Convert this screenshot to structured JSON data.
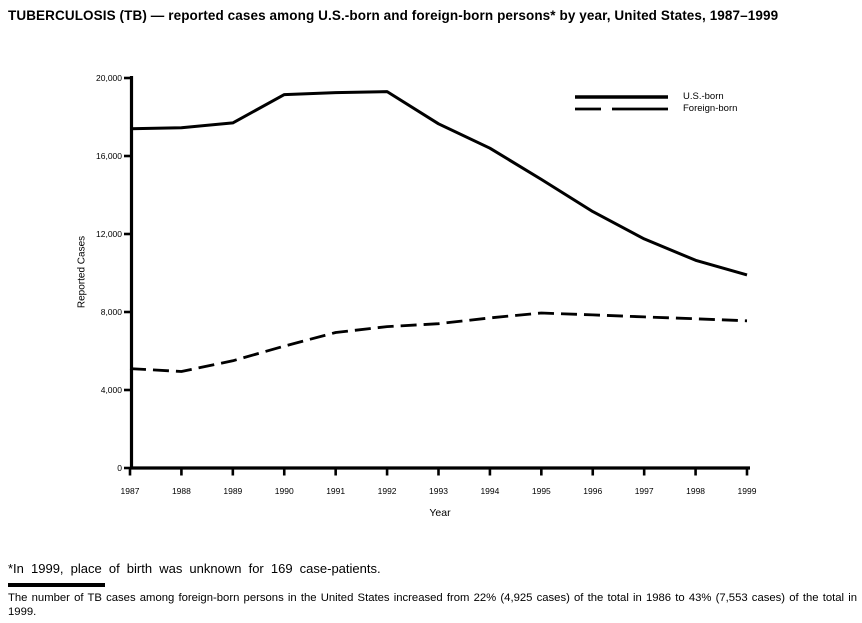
{
  "title": "TUBERCULOSIS (TB) — reported cases among U.S.-born and foreign-born persons* by year, United States, 1987–1999",
  "footnote": "*In 1999, place of birth was unknown for 169 case-patients.",
  "caption": "The number of TB cases among foreign-born persons in the United States increased from 22% (4,925 cases) of the total in 1986 to 43% (7,553 cases) of the total in 1999.",
  "colors": {
    "line": "#000000",
    "background": "#ffffff"
  },
  "chart_data": {
    "type": "line",
    "title": "TUBERCULOSIS (TB) — reported cases among U.S.-born and foreign-born persons by year, United States, 1987–1999",
    "xlabel": "Year",
    "ylabel": "Reported Cases",
    "categories": [
      "1987",
      "1988",
      "1989",
      "1990",
      "1991",
      "1992",
      "1993",
      "1994",
      "1995",
      "1996",
      "1997",
      "1998",
      "1999"
    ],
    "ylim": [
      0,
      20000
    ],
    "grid": false,
    "legend_position": "top-right",
    "y_ticks": [
      {
        "value": 0,
        "label": "0"
      },
      {
        "value": 4000,
        "label": "4,000"
      },
      {
        "value": 8000,
        "label": "8,000"
      },
      {
        "value": 12000,
        "label": "12,000"
      },
      {
        "value": 16000,
        "label": "16,000"
      },
      {
        "value": 20000,
        "label": "20,000"
      }
    ],
    "series": [
      {
        "name": "U.S.-born",
        "style": "solid",
        "values": [
          17400,
          17450,
          17700,
          19150,
          19250,
          19300,
          17650,
          16400,
          14800,
          13150,
          11750,
          10650,
          9900
        ]
      },
      {
        "name": "Foreign-born",
        "style": "dashed",
        "values": [
          5100,
          4950,
          5500,
          6250,
          6950,
          7250,
          7400,
          7700,
          7950,
          7850,
          7750,
          7650,
          7550
        ]
      }
    ]
  }
}
